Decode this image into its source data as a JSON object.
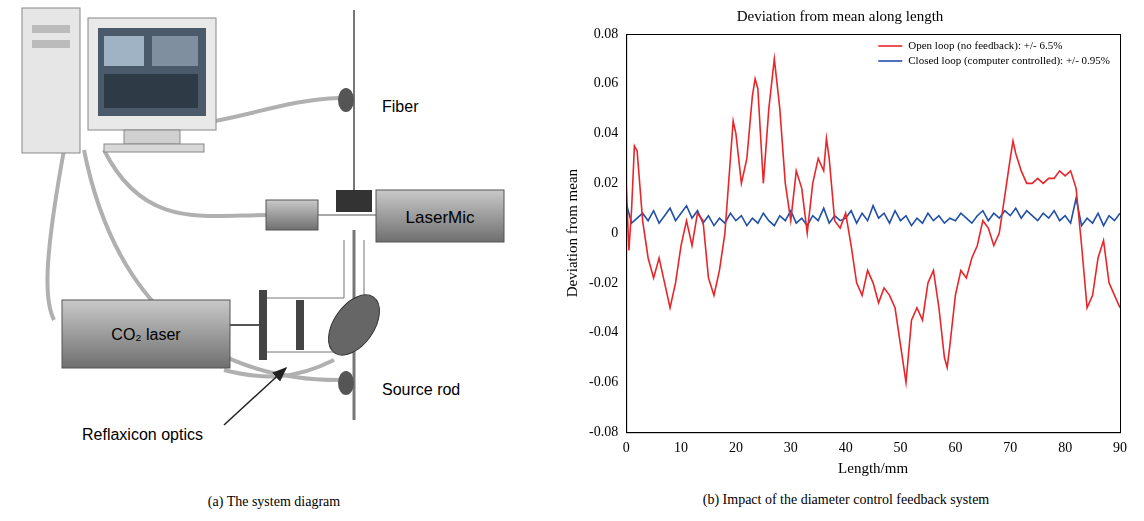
{
  "diagram": {
    "caption": "(a) The system diagram",
    "labels": {
      "fiber": "Fiber",
      "lasermic": "LaserMic",
      "laser": "CO₂ laser",
      "optics": "Reflaxicon optics",
      "rod": "Source rod"
    }
  },
  "chart_data": {
    "type": "line",
    "title": "Deviation from mean along length",
    "caption": "(b) Impact of the diameter control feedback system",
    "x_label": "Length/mm",
    "y_label": "Deviation from mean",
    "xlim": [
      0,
      90
    ],
    "xticks": [
      0,
      10,
      20,
      30,
      40,
      50,
      60,
      70,
      80,
      90
    ],
    "ylim": [
      -0.08,
      0.08
    ],
    "yticks": [
      -0.08,
      -0.06,
      -0.04,
      -0.02,
      0,
      0.02,
      0.04,
      0.06,
      0.08
    ],
    "grid": false,
    "legend": "upper right",
    "series": [
      {
        "name": "Open loop (no feedback): +/- 6.5%",
        "color": "#e8262a",
        "x": [
          0,
          0.5,
          1,
          1.5,
          2,
          3,
          4,
          5,
          6,
          7,
          8,
          9,
          10,
          11,
          12,
          13,
          14,
          15,
          16,
          17,
          18,
          19,
          19.5,
          20,
          21,
          22,
          23,
          23.5,
          24,
          25,
          26,
          27,
          28,
          29,
          30,
          31,
          32,
          33,
          34,
          35,
          36,
          36.5,
          37,
          38,
          39,
          40,
          41,
          42,
          43,
          44,
          45,
          46,
          47,
          48,
          49,
          50,
          51,
          52,
          53,
          54,
          55,
          56,
          57,
          58,
          58.5,
          59,
          60,
          61,
          62,
          63,
          64,
          65,
          66,
          67,
          68,
          69,
          70,
          70.5,
          71,
          72,
          73,
          74,
          75,
          76,
          77,
          78,
          79,
          80,
          81,
          82,
          83,
          84,
          85,
          86,
          87,
          88,
          89,
          90
        ],
        "values": [
          0.02,
          -0.007,
          0.01,
          0.035,
          0.033,
          0.005,
          -0.01,
          -0.018,
          -0.01,
          -0.02,
          -0.03,
          -0.02,
          -0.005,
          0.005,
          -0.005,
          0.008,
          0.005,
          -0.018,
          -0.025,
          -0.015,
          0.0,
          0.03,
          0.045,
          0.04,
          0.02,
          0.03,
          0.055,
          0.062,
          0.058,
          0.02,
          0.05,
          0.07,
          0.05,
          0.02,
          0.005,
          0.025,
          0.018,
          0.0,
          0.02,
          0.03,
          0.025,
          0.038,
          0.03,
          0.005,
          0.002,
          0.008,
          -0.005,
          -0.02,
          -0.025,
          -0.015,
          -0.02,
          -0.028,
          -0.022,
          -0.025,
          -0.03,
          -0.045,
          -0.06,
          -0.035,
          -0.03,
          -0.035,
          -0.02,
          -0.015,
          -0.03,
          -0.05,
          -0.054,
          -0.045,
          -0.025,
          -0.015,
          -0.018,
          -0.01,
          -0.005,
          0.005,
          0.002,
          -0.005,
          0.0,
          0.015,
          0.03,
          0.037,
          0.032,
          0.025,
          0.02,
          0.02,
          0.022,
          0.02,
          0.022,
          0.022,
          0.025,
          0.023,
          0.025,
          0.018,
          -0.005,
          -0.03,
          -0.025,
          -0.01,
          -0.003,
          -0.02,
          -0.025,
          -0.03
        ]
      },
      {
        "name": "Closed loop (computer controlled): +/- 0.95%",
        "color": "#1f4fa8",
        "x": [
          0,
          1,
          2,
          3,
          4,
          5,
          6,
          7,
          8,
          9,
          10,
          11,
          12,
          13,
          14,
          15,
          16,
          17,
          18,
          19,
          20,
          21,
          22,
          23,
          24,
          25,
          26,
          27,
          28,
          29,
          30,
          31,
          32,
          33,
          34,
          35,
          36,
          37,
          38,
          39,
          40,
          41,
          42,
          43,
          44,
          45,
          46,
          47,
          48,
          49,
          50,
          51,
          52,
          53,
          54,
          55,
          56,
          57,
          58,
          59,
          60,
          61,
          62,
          63,
          64,
          65,
          66,
          67,
          68,
          69,
          70,
          71,
          72,
          73,
          74,
          75,
          76,
          77,
          78,
          79,
          80,
          81,
          82,
          83,
          84,
          85,
          86,
          87,
          88,
          89,
          90
        ],
        "values": [
          0.012,
          0.004,
          0.006,
          0.008,
          0.005,
          0.009,
          0.004,
          0.007,
          0.01,
          0.005,
          0.008,
          0.011,
          0.006,
          0.009,
          0.004,
          0.007,
          0.003,
          0.006,
          0.004,
          0.008,
          0.005,
          0.007,
          0.003,
          0.006,
          0.004,
          0.008,
          0.005,
          0.003,
          0.007,
          0.005,
          0.009,
          0.004,
          0.006,
          0.003,
          0.007,
          0.005,
          0.01,
          0.004,
          0.007,
          0.005,
          0.006,
          0.009,
          0.004,
          0.008,
          0.005,
          0.011,
          0.006,
          0.008,
          0.004,
          0.009,
          0.005,
          0.007,
          0.003,
          0.006,
          0.004,
          0.008,
          0.005,
          0.007,
          0.004,
          0.006,
          0.005,
          0.008,
          0.006,
          0.004,
          0.007,
          0.009,
          0.005,
          0.008,
          0.006,
          0.009,
          0.007,
          0.01,
          0.006,
          0.009,
          0.007,
          0.005,
          0.008,
          0.006,
          0.009,
          0.005,
          0.007,
          0.004,
          0.014,
          0.003,
          0.006,
          0.004,
          0.008,
          0.003,
          0.007,
          0.005,
          0.008
        ]
      }
    ]
  }
}
